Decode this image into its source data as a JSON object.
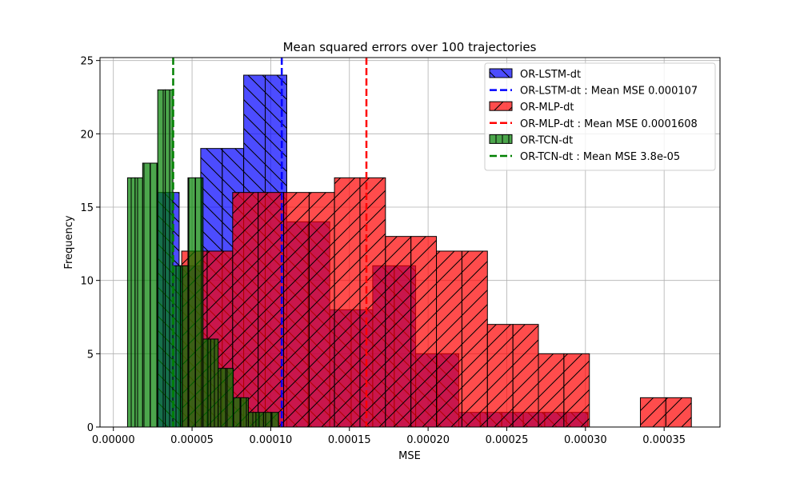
{
  "chart_data": {
    "type": "histogram",
    "title": "Mean squared errors over 100 trajectories",
    "xlabel": "MSE",
    "ylabel": "Frequency",
    "xlim": [
      -8.5e-06,
      0.0003855
    ],
    "ylim": [
      0,
      25.2
    ],
    "grid": true,
    "legend_position": "top-right",
    "xticks": [
      0,
      5e-05,
      0.0001,
      0.00015,
      0.0002,
      0.00025,
      0.0003,
      0.00035
    ],
    "xtick_labels": [
      "0.00000",
      "0.00005",
      "0.00010",
      "0.00015",
      "0.00020",
      "0.00025",
      "0.00030",
      "0.00035"
    ],
    "yticks": [
      0,
      5,
      10,
      15,
      20,
      25
    ],
    "ytick_labels": [
      "0",
      "5",
      "10",
      "15",
      "20",
      "25"
    ],
    "series": [
      {
        "name": "OR-LSTM-dt",
        "color": "#0000ff",
        "hatch": "backslash",
        "bins": [
          {
            "x0": 2.82e-05,
            "x1": 4.18e-05,
            "count": 16
          },
          {
            "x0": 4.18e-05,
            "x1": 5.55e-05,
            "count": 11
          },
          {
            "x0": 5.55e-05,
            "x1": 6.92e-05,
            "count": 19
          },
          {
            "x0": 6.92e-05,
            "x1": 8.28e-05,
            "count": 19
          },
          {
            "x0": 8.28e-05,
            "x1": 9.65e-05,
            "count": 24
          },
          {
            "x0": 9.65e-05,
            "x1": 0.0001102,
            "count": 24
          },
          {
            "x0": 0.0001102,
            "x1": 0.0001238,
            "count": 14
          },
          {
            "x0": 0.0001238,
            "x1": 0.0001375,
            "count": 14
          },
          {
            "x0": 0.0001375,
            "x1": 0.0001511,
            "count": 8
          },
          {
            "x0": 0.0001511,
            "x1": 0.0001648,
            "count": 8
          },
          {
            "x0": 0.0001648,
            "x1": 0.0001785,
            "count": 11
          },
          {
            "x0": 0.0001785,
            "x1": 0.0001921,
            "count": 11
          },
          {
            "x0": 0.0001921,
            "x1": 0.0002058,
            "count": 5
          },
          {
            "x0": 0.0002058,
            "x1": 0.0002195,
            "count": 5
          },
          {
            "x0": 0.0002195,
            "x1": 0.0002331,
            "count": 1
          },
          {
            "x0": 0.0002331,
            "x1": 0.0002468,
            "count": 1
          },
          {
            "x0": 0.0002468,
            "x1": 0.0002605,
            "count": 1
          },
          {
            "x0": 0.0002605,
            "x1": 0.0002741,
            "count": 1
          },
          {
            "x0": 0.0002741,
            "x1": 0.0002878,
            "count": 1
          },
          {
            "x0": 0.0002878,
            "x1": 0.0003015,
            "count": 1
          }
        ],
        "mean": 0.000107,
        "mean_label": "OR-LSTM-dt : Mean MSE 0.000107"
      },
      {
        "name": "OR-MLP-dt",
        "color": "#ff0000",
        "hatch": "slash",
        "bins": [
          {
            "x0": 4.34e-05,
            "x1": 5.96e-05,
            "count": 12
          },
          {
            "x0": 5.96e-05,
            "x1": 7.58e-05,
            "count": 12
          },
          {
            "x0": 7.58e-05,
            "x1": 9.2e-05,
            "count": 16
          },
          {
            "x0": 9.2e-05,
            "x1": 0.0001082,
            "count": 16
          },
          {
            "x0": 0.0001082,
            "x1": 0.0001244,
            "count": 16
          },
          {
            "x0": 0.0001244,
            "x1": 0.0001405,
            "count": 16
          },
          {
            "x0": 0.0001405,
            "x1": 0.0001567,
            "count": 17
          },
          {
            "x0": 0.0001567,
            "x1": 0.0001729,
            "count": 17
          },
          {
            "x0": 0.0001729,
            "x1": 0.0001891,
            "count": 13
          },
          {
            "x0": 0.0001891,
            "x1": 0.0002053,
            "count": 13
          },
          {
            "x0": 0.0002053,
            "x1": 0.0002215,
            "count": 12
          },
          {
            "x0": 0.0002215,
            "x1": 0.0002377,
            "count": 12
          },
          {
            "x0": 0.0002377,
            "x1": 0.0002539,
            "count": 7
          },
          {
            "x0": 0.0002539,
            "x1": 0.0002701,
            "count": 7
          },
          {
            "x0": 0.0002701,
            "x1": 0.0002863,
            "count": 5
          },
          {
            "x0": 0.0002863,
            "x1": 0.0003025,
            "count": 5
          },
          {
            "x0": 0.0003025,
            "x1": 0.0003187,
            "count": 0
          },
          {
            "x0": 0.0003187,
            "x1": 0.0003349,
            "count": 0
          },
          {
            "x0": 0.0003349,
            "x1": 0.0003511,
            "count": 2
          },
          {
            "x0": 0.0003511,
            "x1": 0.0003673,
            "count": 2
          }
        ],
        "mean": 0.0001608,
        "mean_label": "OR-MLP-dt : Mean MSE 0.0001608"
      },
      {
        "name": "OR-TCN-dt",
        "color": "#008000",
        "hatch": "vertical",
        "bins": [
          {
            "x0": 9e-06,
            "x1": 1.38e-05,
            "count": 17
          },
          {
            "x0": 1.38e-05,
            "x1": 1.86e-05,
            "count": 17
          },
          {
            "x0": 1.86e-05,
            "x1": 2.34e-05,
            "count": 18
          },
          {
            "x0": 2.34e-05,
            "x1": 2.82e-05,
            "count": 18
          },
          {
            "x0": 2.82e-05,
            "x1": 3.3e-05,
            "count": 23
          },
          {
            "x0": 3.3e-05,
            "x1": 3.78e-05,
            "count": 23
          },
          {
            "x0": 3.78e-05,
            "x1": 4.26e-05,
            "count": 11
          },
          {
            "x0": 4.26e-05,
            "x1": 4.74e-05,
            "count": 11
          },
          {
            "x0": 4.74e-05,
            "x1": 5.22e-05,
            "count": 17
          },
          {
            "x0": 5.22e-05,
            "x1": 5.7e-05,
            "count": 17
          },
          {
            "x0": 5.7e-05,
            "x1": 6.18e-05,
            "count": 6
          },
          {
            "x0": 6.18e-05,
            "x1": 6.66e-05,
            "count": 6
          },
          {
            "x0": 6.66e-05,
            "x1": 7.14e-05,
            "count": 4
          },
          {
            "x0": 7.14e-05,
            "x1": 7.62e-05,
            "count": 4
          },
          {
            "x0": 7.62e-05,
            "x1": 8.1e-05,
            "count": 2
          },
          {
            "x0": 8.1e-05,
            "x1": 8.58e-05,
            "count": 2
          },
          {
            "x0": 8.58e-05,
            "x1": 9.06e-05,
            "count": 1
          },
          {
            "x0": 9.06e-05,
            "x1": 9.54e-05,
            "count": 1
          },
          {
            "x0": 9.54e-05,
            "x1": 0.0001002,
            "count": 1
          },
          {
            "x0": 0.0001002,
            "x1": 0.000105,
            "count": 1
          }
        ],
        "mean": 3.8e-05,
        "mean_label": "OR-TCN-dt : Mean MSE 3.8e-05"
      }
    ],
    "legend": [
      {
        "label": "OR-LSTM-dt",
        "kind": "patch",
        "color": "#0000ff",
        "hatch": "backslash"
      },
      {
        "label": "OR-LSTM-dt : Mean MSE 0.000107",
        "kind": "dashed-line",
        "color": "#0000ff"
      },
      {
        "label": "OR-MLP-dt",
        "kind": "patch",
        "color": "#ff0000",
        "hatch": "slash"
      },
      {
        "label": "OR-MLP-dt : Mean MSE 0.0001608",
        "kind": "dashed-line",
        "color": "#ff0000"
      },
      {
        "label": "OR-TCN-dt",
        "kind": "patch",
        "color": "#008000",
        "hatch": "vertical"
      },
      {
        "label": "OR-TCN-dt : Mean MSE 3.8e-05",
        "kind": "dashed-line",
        "color": "#008000"
      }
    ]
  }
}
